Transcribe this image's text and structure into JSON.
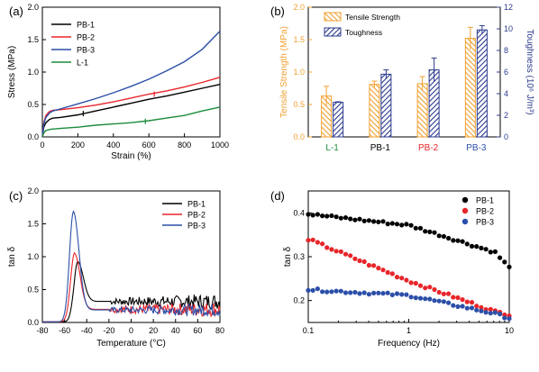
{
  "colors": {
    "black": "#000000",
    "red": "#e8252a",
    "blue": "#2b4fa8",
    "green": "#1c8c3c",
    "orange": "#f0a030",
    "navy": "#2b3a8c"
  },
  "chart_data": [
    {
      "panel_label": "(a)",
      "type": "line",
      "xlabel": "Strain (%)",
      "ylabel": "Stress (MPa)",
      "xlim": [
        0,
        1000
      ],
      "ylim": [
        0,
        2.0
      ],
      "xticks": [
        "0",
        "200",
        "400",
        "600",
        "800",
        "1000"
      ],
      "yticks": [
        "0.0",
        "0.5",
        "1.0",
        "1.5",
        "2.0"
      ],
      "legend_position": "top-left",
      "series": [
        {
          "name": "PB-1",
          "color": "#000000",
          "points": [
            [
              0,
              0
            ],
            [
              8,
              0.15
            ],
            [
              20,
              0.22
            ],
            [
              40,
              0.27
            ],
            [
              60,
              0.29
            ],
            [
              100,
              0.3
            ],
            [
              200,
              0.34
            ],
            [
              300,
              0.4
            ],
            [
              400,
              0.46
            ],
            [
              500,
              0.52
            ],
            [
              600,
              0.58
            ],
            [
              700,
              0.63
            ],
            [
              800,
              0.69
            ],
            [
              900,
              0.75
            ],
            [
              1000,
              0.81
            ]
          ]
        },
        {
          "name": "PB-2",
          "color": "#e8252a",
          "points": [
            [
              0,
              0
            ],
            [
              8,
              0.22
            ],
            [
              20,
              0.33
            ],
            [
              40,
              0.39
            ],
            [
              60,
              0.41
            ],
            [
              100,
              0.42
            ],
            [
              200,
              0.45
            ],
            [
              300,
              0.49
            ],
            [
              400,
              0.54
            ],
            [
              500,
              0.6
            ],
            [
              600,
              0.66
            ],
            [
              700,
              0.71
            ],
            [
              800,
              0.77
            ],
            [
              900,
              0.84
            ],
            [
              1000,
              0.92
            ]
          ]
        },
        {
          "name": "PB-3",
          "color": "#2b4fa8",
          "points": [
            [
              0,
              0
            ],
            [
              8,
              0.2
            ],
            [
              20,
              0.3
            ],
            [
              40,
              0.37
            ],
            [
              60,
              0.4
            ],
            [
              100,
              0.43
            ],
            [
              200,
              0.51
            ],
            [
              300,
              0.59
            ],
            [
              400,
              0.68
            ],
            [
              500,
              0.78
            ],
            [
              600,
              0.89
            ],
            [
              700,
              1.02
            ],
            [
              800,
              1.16
            ],
            [
              900,
              1.35
            ],
            [
              1000,
              1.63
            ]
          ]
        },
        {
          "name": "L-1",
          "color": "#1c8c3c",
          "points": [
            [
              0,
              0
            ],
            [
              8,
              0.06
            ],
            [
              20,
              0.1
            ],
            [
              50,
              0.12
            ],
            [
              100,
              0.13
            ],
            [
              200,
              0.15
            ],
            [
              300,
              0.18
            ],
            [
              400,
              0.2
            ],
            [
              500,
              0.22
            ],
            [
              600,
              0.25
            ],
            [
              700,
              0.29
            ],
            [
              800,
              0.33
            ],
            [
              900,
              0.4
            ],
            [
              1000,
              0.46
            ]
          ]
        }
      ]
    },
    {
      "panel_label": "(b)",
      "type": "bar",
      "categories": [
        "L-1",
        "PB-1",
        "PB-2",
        "PB-3"
      ],
      "category_colors": [
        "#1c8c3c",
        "#000000",
        "#e8252a",
        "#2b4fa8"
      ],
      "ylabel_left": "Tensile Strength (MPa)",
      "ylabel_right": "Toughness (10⁶ J/m³)",
      "ylim_left": [
        0,
        2.0
      ],
      "ylim_right": [
        0,
        12
      ],
      "yticks_left": [
        "0.0",
        "0.5",
        "1.0",
        "1.5",
        "2.0"
      ],
      "yticks_right": [
        "0",
        "2",
        "4",
        "6",
        "8",
        "10",
        "12"
      ],
      "legend_position": "top-left",
      "series": [
        {
          "name": "Tensile Strength",
          "axis": "left",
          "values": [
            0.63,
            0.81,
            0.82,
            1.52
          ],
          "errors": [
            0.15,
            0.05,
            0.11,
            0.17
          ]
        },
        {
          "name": "Toughness",
          "axis": "right",
          "values": [
            3.2,
            5.8,
            6.2,
            9.9
          ],
          "errors": [
            0.05,
            0.4,
            1.1,
            0.4
          ]
        }
      ]
    },
    {
      "panel_label": "(c)",
      "type": "line",
      "xlabel": "Temperature (°C)",
      "ylabel": "tan δ",
      "xlim": [
        -80,
        80
      ],
      "ylim": [
        0,
        2.0
      ],
      "xticks": [
        "-80",
        "-60",
        "-40",
        "-20",
        "0",
        "20",
        "40",
        "60",
        "80"
      ],
      "yticks": [
        "0.0",
        "0.5",
        "1.0",
        "1.5",
        "2.0"
      ],
      "legend_position": "top-right",
      "series": [
        {
          "name": "PB-1",
          "color": "#000000",
          "peak": [
            -48,
            0.92
          ],
          "plateau": 0.32,
          "noise": 0.12
        },
        {
          "name": "PB-2",
          "color": "#e8252a",
          "peak": [
            -51,
            1.05
          ],
          "plateau": 0.2,
          "noise": 0.12
        },
        {
          "name": "PB-3",
          "color": "#2b4fa8",
          "peak": [
            -52,
            1.68
          ],
          "plateau": 0.19,
          "noise": 0.1
        }
      ]
    },
    {
      "panel_label": "(d)",
      "type": "scatter",
      "xlabel": "Frequency (Hz)",
      "ylabel": "tan δ",
      "xscale": "log",
      "xlim": [
        0.1,
        10
      ],
      "ylim": [
        0.15,
        0.45
      ],
      "xticks": [
        "0.1",
        "1",
        "10"
      ],
      "yticks": [
        "0.2",
        "0.3",
        "0.4"
      ],
      "legend_position": "top-right",
      "series": [
        {
          "name": "PB-1",
          "color": "#000000",
          "y_start": 0.397,
          "y_mid": 0.372,
          "y_near_end": 0.31,
          "y_end": 0.275
        },
        {
          "name": "PB-2",
          "color": "#e8252a",
          "y_start": 0.34,
          "y_mid": 0.245,
          "y_near_end": 0.175,
          "y_end": 0.168
        },
        {
          "name": "PB-3",
          "color": "#2b4fa8",
          "y_start": 0.225,
          "y_mid": 0.212,
          "y_near_end": 0.17,
          "y_end": 0.16
        }
      ]
    }
  ]
}
